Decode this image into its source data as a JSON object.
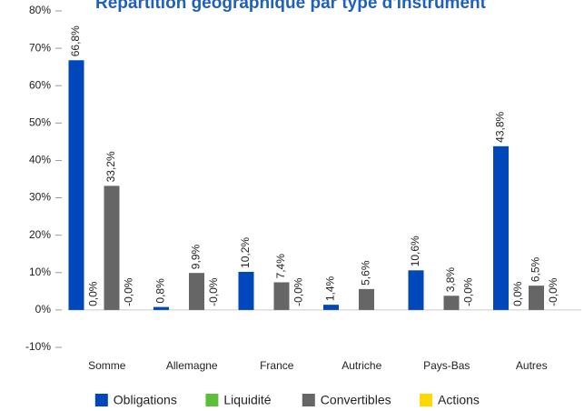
{
  "chart_data": {
    "type": "bar",
    "title": "Répartition géographique par type d'instrument",
    "categories": [
      "Somme",
      "Allemagne",
      "France",
      "Autriche",
      "Pays-Bas",
      "Autres"
    ],
    "series": [
      {
        "name": "Obligations",
        "color": "#0047bb",
        "values": [
          66.8,
          0.8,
          10.2,
          1.4,
          10.6,
          43.8
        ],
        "value_labels": [
          "66,8%",
          "0,8%",
          "10,2%",
          "1,4%",
          "10,6%",
          "43,8%"
        ]
      },
      {
        "name": "Liquidité",
        "color": "#5cbf3a",
        "values": [
          0.0,
          null,
          null,
          null,
          null,
          0.0
        ],
        "value_labels": [
          "0,0%",
          null,
          null,
          null,
          null,
          "0,0%"
        ]
      },
      {
        "name": "Convertibles",
        "color": "#666666",
        "values": [
          33.2,
          9.9,
          7.4,
          5.6,
          3.8,
          6.5
        ],
        "value_labels": [
          "33,2%",
          "9,9%",
          "7,4%",
          "5,6%",
          "3,8%",
          "6,5%"
        ]
      },
      {
        "name": "Actions",
        "color": "#ffd800",
        "values": [
          0.0,
          0.0,
          0.0,
          null,
          0.0,
          0.0
        ],
        "value_labels": [
          "-0,0%",
          "-0,0%",
          "-0,0%",
          null,
          "-0,0%",
          "-0,0%"
        ]
      }
    ],
    "ylim": [
      -10,
      80
    ],
    "yticks": [
      {
        "value": -10,
        "label": "-10%"
      },
      {
        "value": 0,
        "label": "0%"
      },
      {
        "value": 10,
        "label": "10%"
      },
      {
        "value": 20,
        "label": "20%"
      },
      {
        "value": 30,
        "label": "30%"
      },
      {
        "value": 40,
        "label": "40%"
      },
      {
        "value": 50,
        "label": "50%"
      },
      {
        "value": 60,
        "label": "60%"
      },
      {
        "value": 70,
        "label": "70%"
      },
      {
        "value": 80,
        "label": "80%"
      }
    ],
    "legend": "bottom"
  }
}
